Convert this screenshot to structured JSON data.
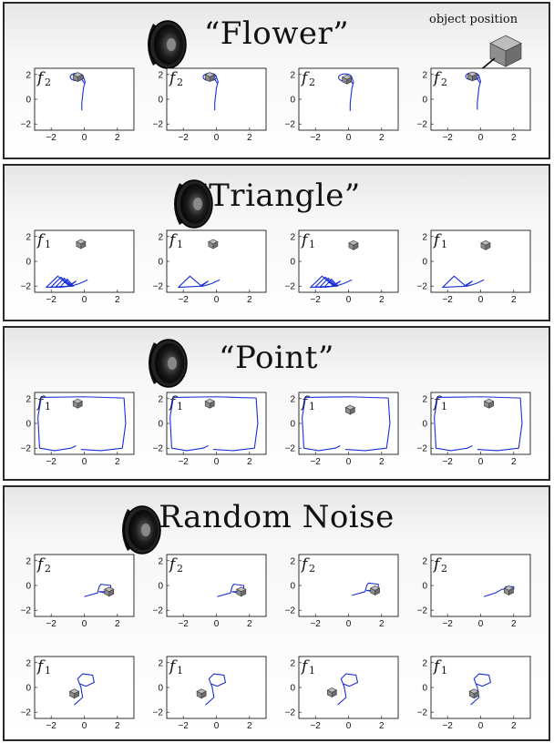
{
  "panels": [
    {
      "title": "“Flower”",
      "callout": "object position"
    },
    {
      "title": "“Triangle”"
    },
    {
      "title": "“Point”"
    },
    {
      "title": "Random Noise"
    }
  ],
  "icons": {
    "speaker": "speaker-icon",
    "object": "wooden-crate-icon"
  },
  "colors": {
    "trajectory": "#1a2fd6",
    "frame": "#000000",
    "panel_border": "#2a2a2a"
  },
  "chart_data": [
    {
      "type": "line",
      "panel": 1,
      "feature": "f",
      "feature_sub": "2",
      "xlim": [
        -3,
        3
      ],
      "ylim": [
        -2.5,
        2.5
      ],
      "xticks": [
        "−2",
        "0",
        "2"
      ],
      "yticks": [
        "2",
        "0",
        "−2"
      ],
      "plots": [
        {
          "object": [
            -0.4,
            1.8
          ],
          "trajectory": "flower",
          "offset": [
            0,
            0
          ]
        },
        {
          "object": [
            -0.4,
            1.8
          ],
          "trajectory": "flower",
          "offset": [
            0.05,
            0
          ]
        },
        {
          "object": [
            -0.1,
            1.6
          ],
          "trajectory": "flower",
          "offset": [
            0.25,
            -0.05
          ]
        },
        {
          "object": [
            -0.5,
            1.85
          ],
          "trajectory": "flower",
          "offset": [
            -0.05,
            0.05
          ]
        }
      ]
    },
    {
      "type": "line",
      "panel": 2,
      "feature": "f",
      "feature_sub": "1",
      "xlim": [
        -3,
        3
      ],
      "ylim": [
        -2.5,
        2.5
      ],
      "xticks": [
        "−2",
        "0",
        "2"
      ],
      "yticks": [
        "2",
        "0",
        "−2"
      ],
      "plots": [
        {
          "object": [
            -0.2,
            1.4
          ],
          "trajectory": "triangle-multi",
          "offset": [
            0,
            0
          ]
        },
        {
          "object": [
            -0.2,
            1.4
          ],
          "trajectory": "triangle",
          "offset": [
            0,
            0
          ]
        },
        {
          "object": [
            0.3,
            1.3
          ],
          "trajectory": "triangle-multi",
          "offset": [
            0,
            0
          ]
        },
        {
          "object": [
            0.3,
            1.3
          ],
          "trajectory": "triangle",
          "offset": [
            0,
            0
          ]
        }
      ]
    },
    {
      "type": "line",
      "panel": 3,
      "feature": "f",
      "feature_sub": "1",
      "xlim": [
        -3,
        3
      ],
      "ylim": [
        -2.5,
        2.5
      ],
      "xticks": [
        "−2",
        "0",
        "2"
      ],
      "yticks": [
        "2",
        "0",
        "−2"
      ],
      "plots": [
        {
          "object": [
            -0.4,
            1.6
          ],
          "trajectory": "point",
          "offset": [
            0,
            0
          ]
        },
        {
          "object": [
            -0.4,
            1.6
          ],
          "trajectory": "point",
          "offset": [
            0,
            0
          ]
        },
        {
          "object": [
            0.1,
            1.1
          ],
          "trajectory": "point",
          "offset": [
            0,
            0
          ]
        },
        {
          "object": [
            0.5,
            1.6
          ],
          "trajectory": "point",
          "offset": [
            0,
            0
          ]
        }
      ]
    },
    {
      "type": "line",
      "panel": 4,
      "feature": "f",
      "feature_sub": "2",
      "xlim": [
        -3,
        3
      ],
      "ylim": [
        -2.5,
        2.5
      ],
      "xticks": [
        "−2",
        "0",
        "2"
      ],
      "yticks": [
        "2",
        "0",
        "−2"
      ],
      "plots": [
        {
          "object": [
            1.5,
            -0.5
          ],
          "trajectory": "noise-a",
          "offset": [
            0,
            0
          ]
        },
        {
          "object": [
            1.5,
            -0.5
          ],
          "trajectory": "noise-a",
          "offset": [
            0.05,
            0
          ]
        },
        {
          "object": [
            1.6,
            -0.4
          ],
          "trajectory": "noise-a",
          "offset": [
            0.2,
            0.1
          ]
        },
        {
          "object": [
            1.7,
            -0.4
          ],
          "trajectory": "noise-b",
          "offset": [
            0.2,
            0
          ]
        }
      ]
    },
    {
      "type": "line",
      "panel": 4,
      "feature": "f",
      "feature_sub": "1",
      "xlim": [
        -3,
        3
      ],
      "ylim": [
        -2.5,
        2.5
      ],
      "xticks": [
        "−2",
        "0",
        "2"
      ],
      "yticks": [
        "2",
        "0",
        "−2"
      ],
      "plots": [
        {
          "object": [
            -0.6,
            -0.5
          ],
          "trajectory": "noise-c",
          "offset": [
            0,
            0
          ]
        },
        {
          "object": [
            -0.9,
            -0.5
          ],
          "trajectory": "noise-c",
          "offset": [
            -0.05,
            0
          ]
        },
        {
          "object": [
            -1.0,
            -0.4
          ],
          "trajectory": "noise-c",
          "offset": [
            -0.05,
            0
          ]
        },
        {
          "object": [
            -0.4,
            -0.5
          ],
          "trajectory": "noise-c",
          "offset": [
            0,
            0
          ]
        }
      ]
    }
  ]
}
